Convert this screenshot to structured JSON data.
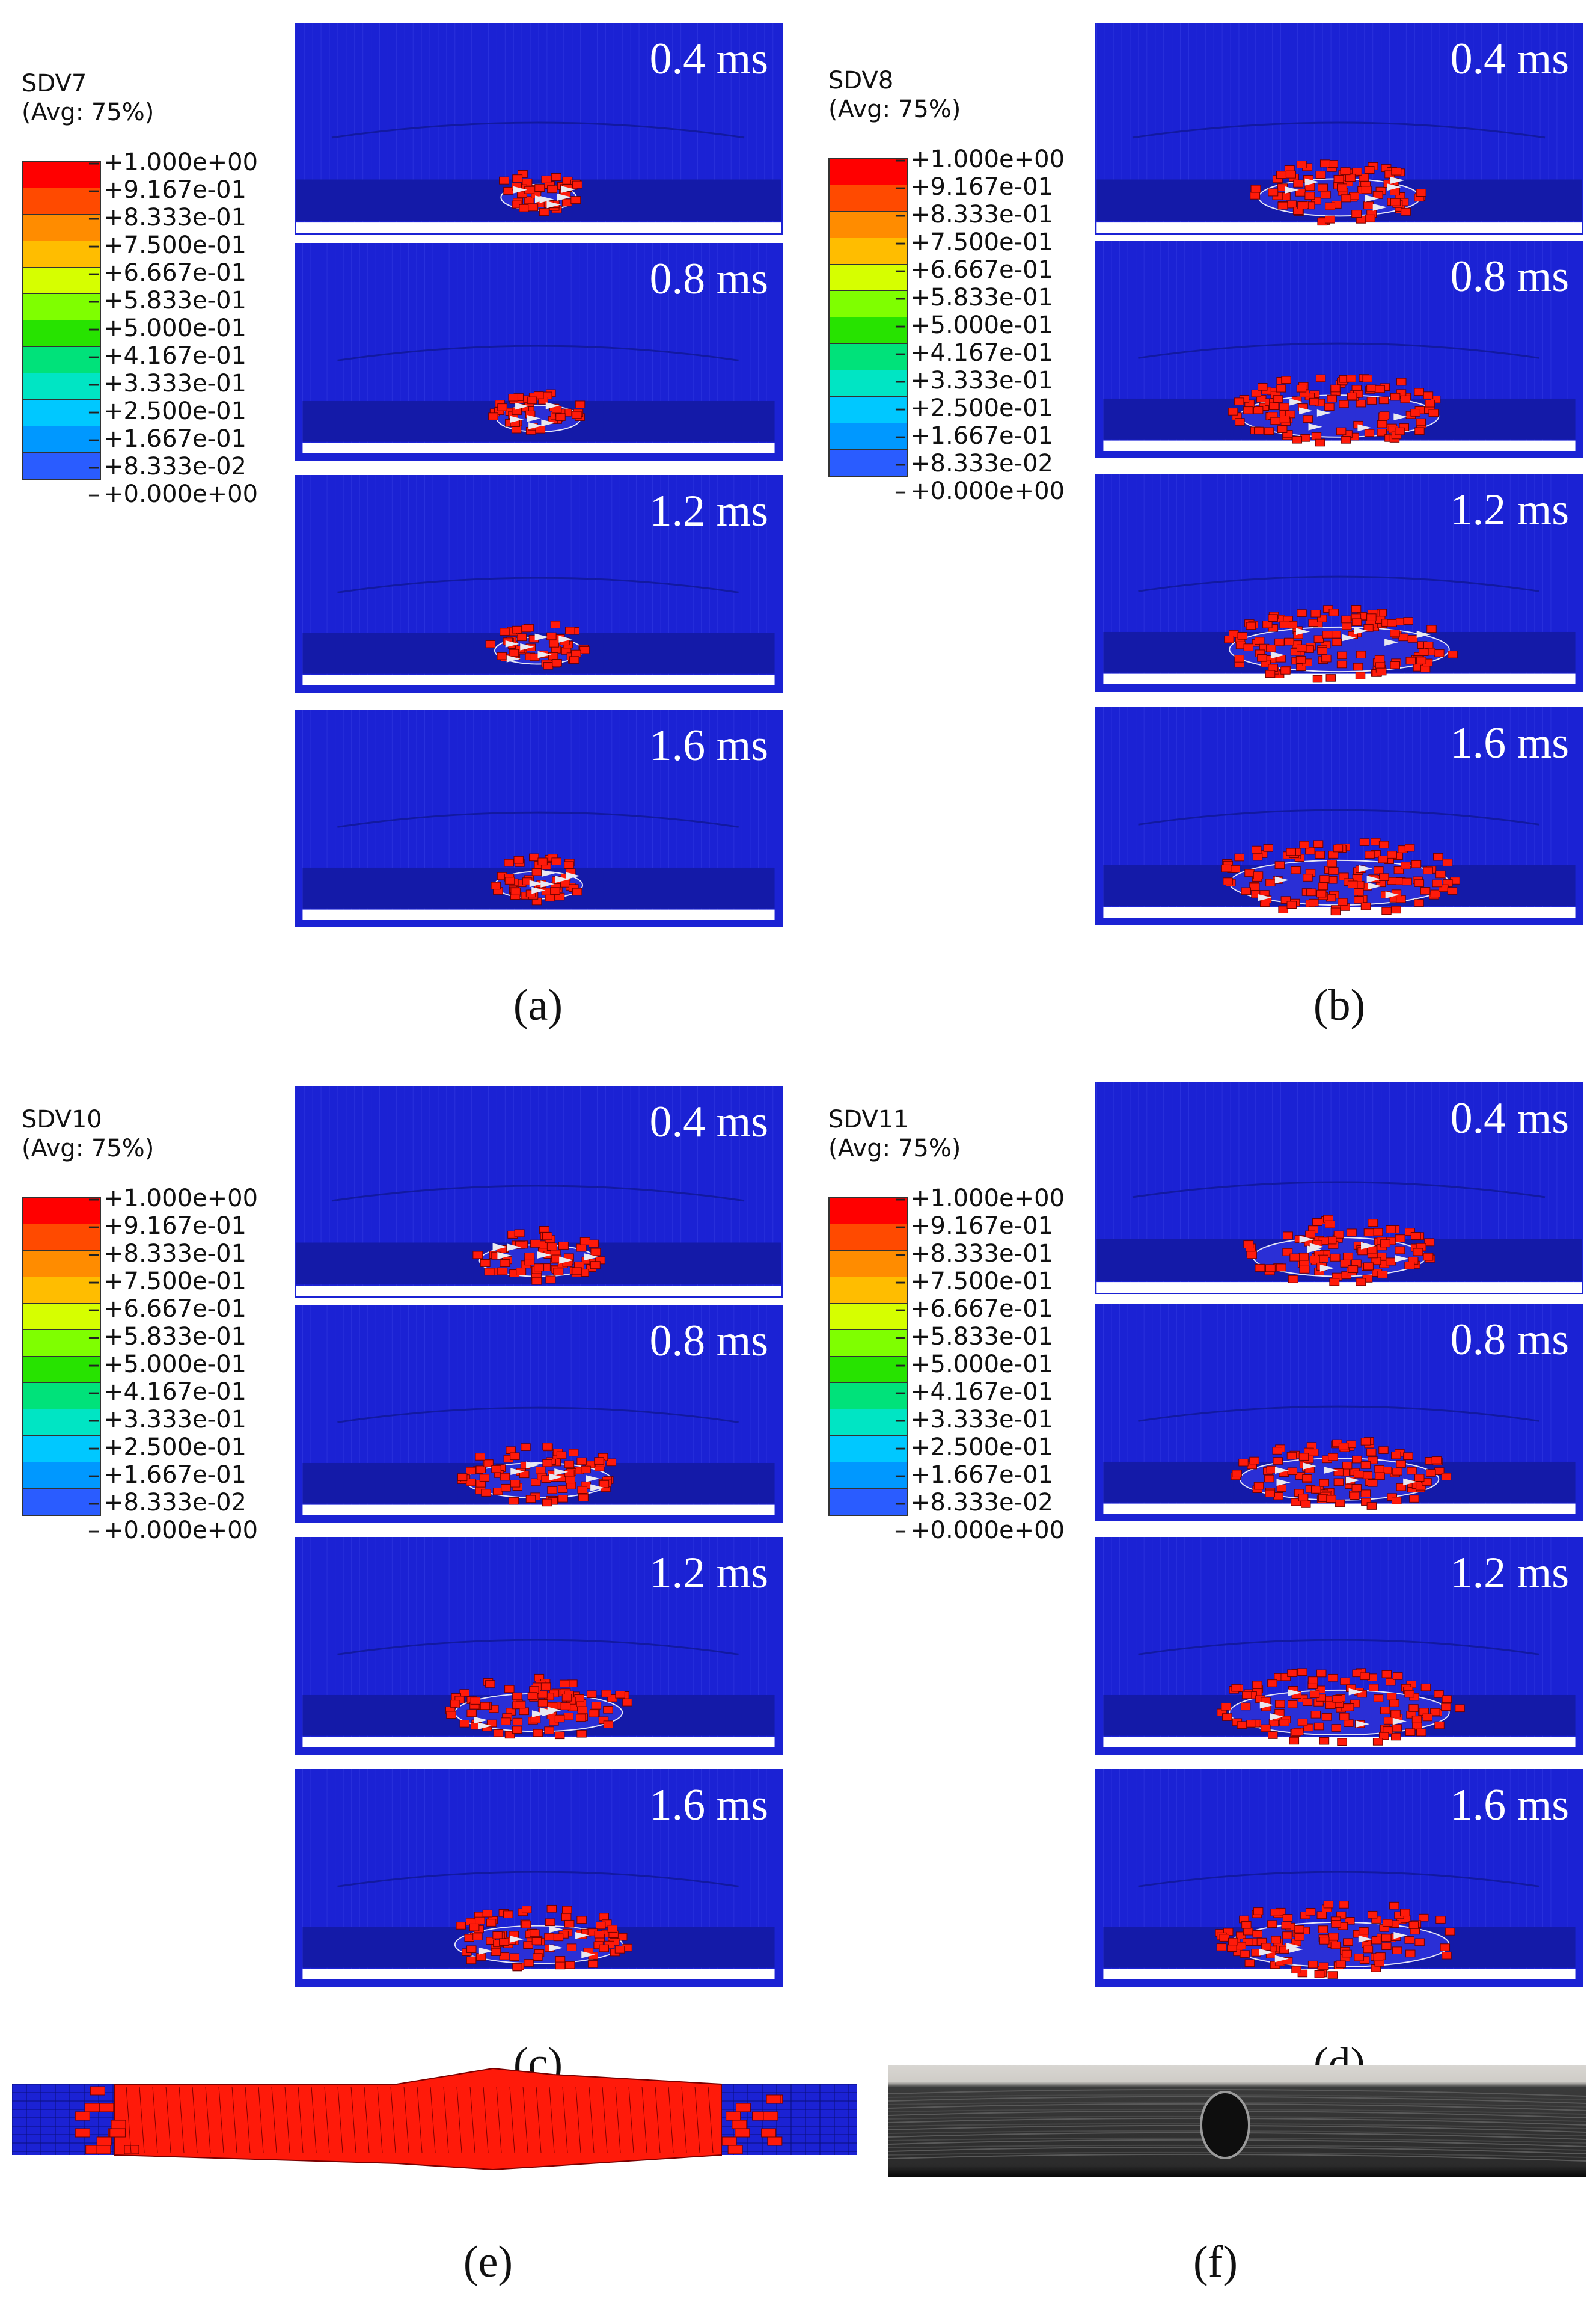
{
  "legend_levels": [
    "+1.000e+00",
    "+9.167e-01",
    "+8.333e-01",
    "+7.500e-01",
    "+6.667e-01",
    "+5.833e-01",
    "+5.000e-01",
    "+4.167e-01",
    "+3.333e-01",
    "+2.500e-01",
    "+1.667e-01",
    "+8.333e-02",
    "+0.000e+00"
  ],
  "legend_colors": [
    "#ff0000",
    "#ff4a00",
    "#ff8c00",
    "#ffbd00",
    "#d6ff00",
    "#7fff00",
    "#27e300",
    "#00e27a",
    "#00e5c4",
    "#00c8ff",
    "#0098ff",
    "#2a5cff",
    "#0000ff"
  ],
  "mesh_color": "#1b22d4",
  "damage_color": "#ff1a0a",
  "figures": [
    {
      "id": "a",
      "legend": {
        "title": "SDV7",
        "subtitle": "(Avg: 75%)"
      },
      "caption": "(a)",
      "times": [
        "0.4 ms",
        "0.8 ms",
        "1.2 ms",
        "1.6 ms"
      ],
      "damage": [
        0.15,
        0.2,
        0.22,
        0.22
      ]
    },
    {
      "id": "b",
      "legend": {
        "title": "SDV8",
        "subtitle": "(Avg: 75%)"
      },
      "caption": "(b)",
      "times": [
        "0.4 ms",
        "0.8 ms",
        "1.2 ms",
        "1.6 ms"
      ],
      "damage": [
        0.55,
        0.75,
        0.85,
        0.85
      ]
    },
    {
      "id": "c",
      "legend": {
        "title": "SDV10",
        "subtitle": "(Avg: 75%)"
      },
      "caption": "(c)",
      "times": [
        "0.4 ms",
        "0.8 ms",
        "1.2 ms",
        "1.6 ms"
      ],
      "damage": [
        0.35,
        0.5,
        0.6,
        0.6
      ]
    },
    {
      "id": "d",
      "legend": {
        "title": "SDV11",
        "subtitle": "(Avg: 75%)"
      },
      "caption": "(d)",
      "times": [
        "0.4 ms",
        "0.8 ms",
        "1.2 ms",
        "1.6 ms"
      ],
      "damage": [
        0.6,
        0.75,
        0.85,
        0.85
      ]
    }
  ],
  "strip_e": {
    "caption": "(e)"
  },
  "photo_f": {
    "caption": "(f)"
  }
}
